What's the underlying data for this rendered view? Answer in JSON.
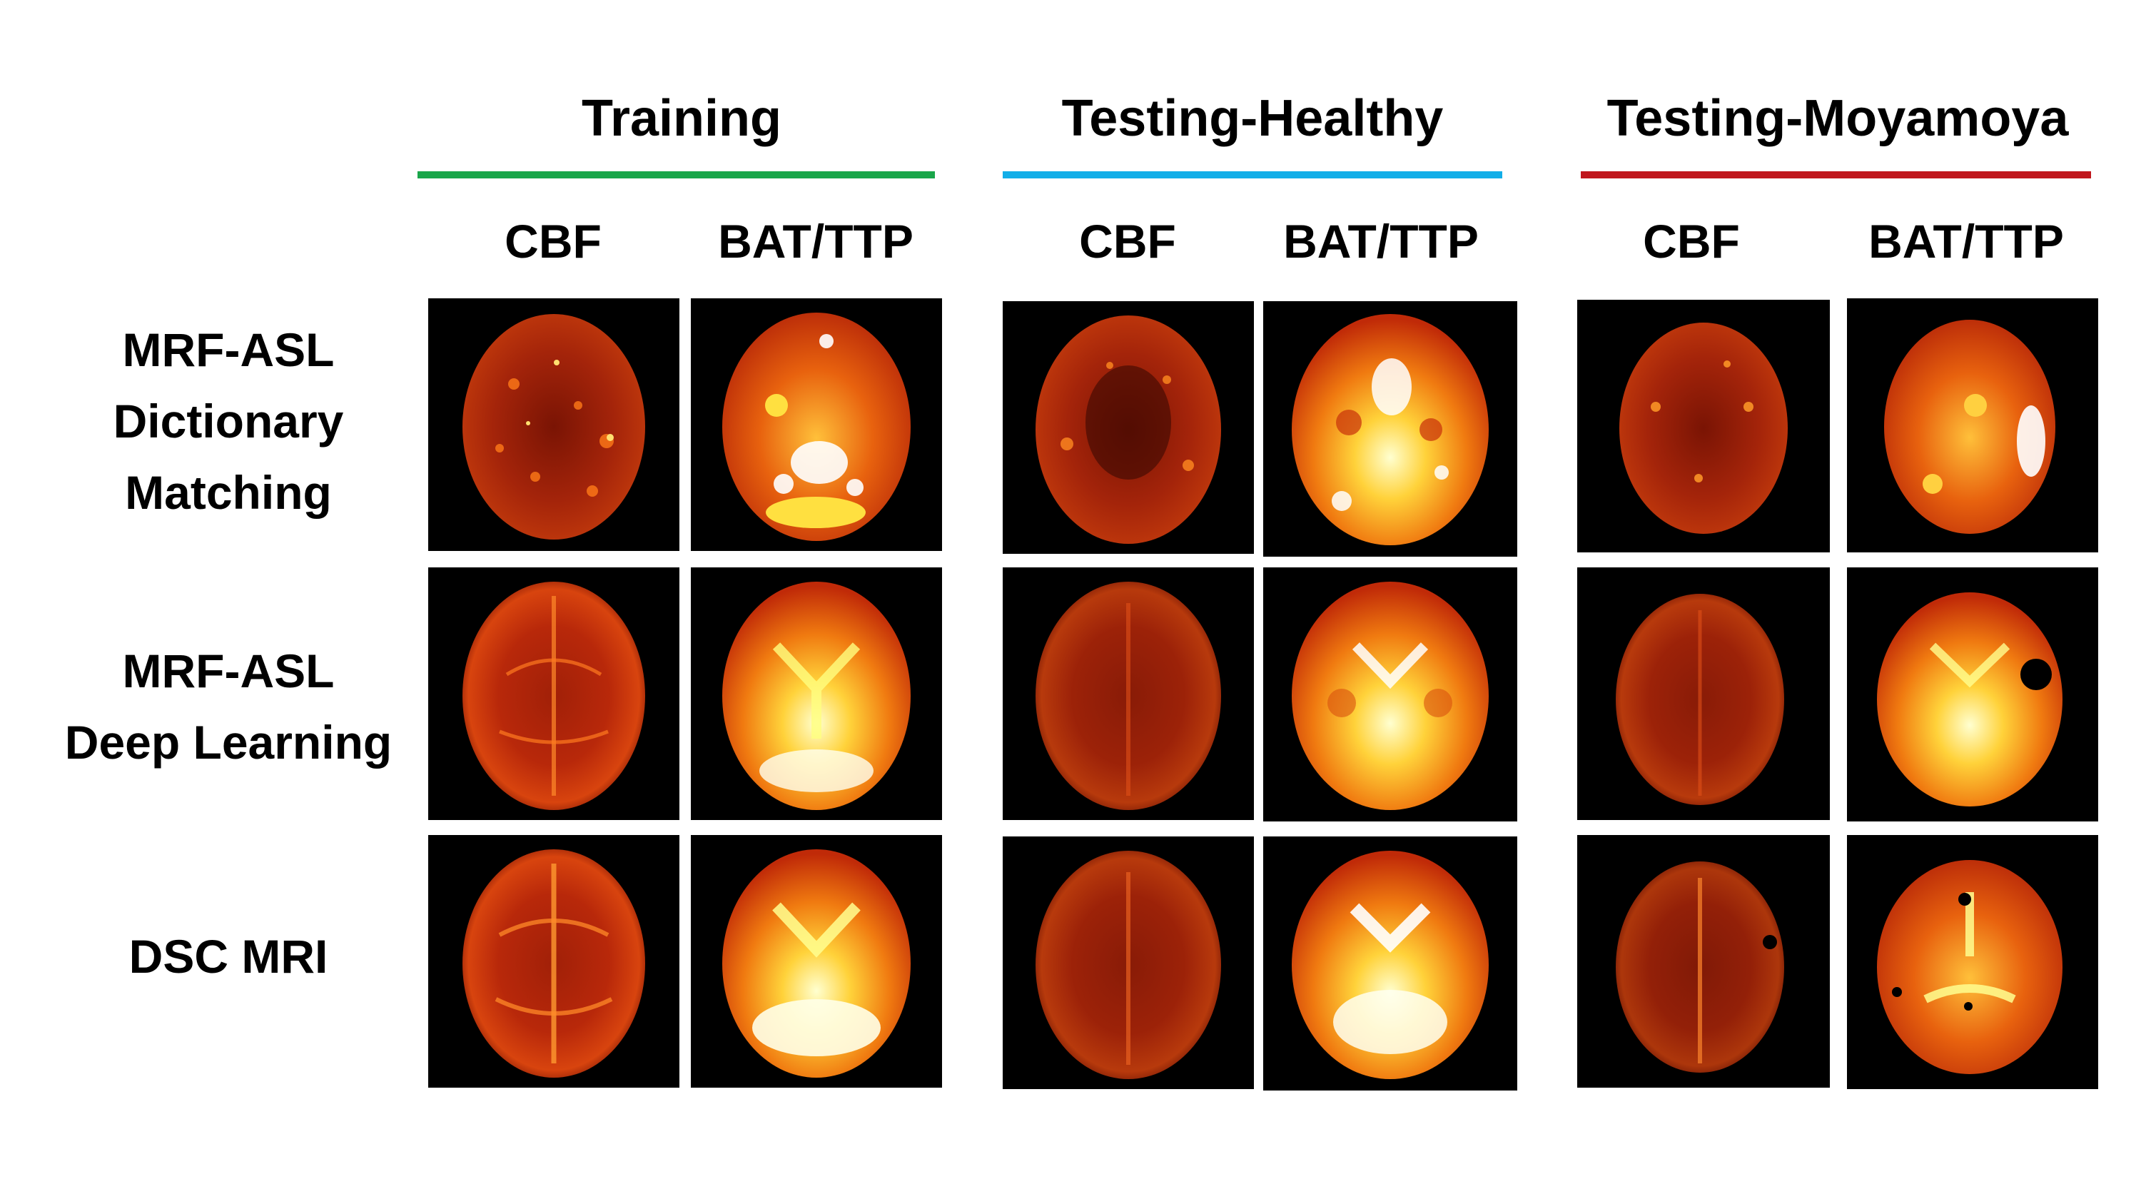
{
  "groups": [
    {
      "title": "Training",
      "line_color": "#1aa64a"
    },
    {
      "title": "Testing-Healthy",
      "line_color": "#12aee8"
    },
    {
      "title": "Testing-Moyamoya",
      "line_color": "#c0161c"
    }
  ],
  "columns": {
    "cbf": "CBF",
    "bat": "BAT/TTP"
  },
  "rows": [
    {
      "label_lines": [
        "MRF-ASL",
        "Dictionary",
        "Matching"
      ]
    },
    {
      "label_lines": [
        "MRF-ASL",
        "Deep Learning"
      ]
    },
    {
      "label_lines": [
        "DSC MRI"
      ]
    }
  ]
}
